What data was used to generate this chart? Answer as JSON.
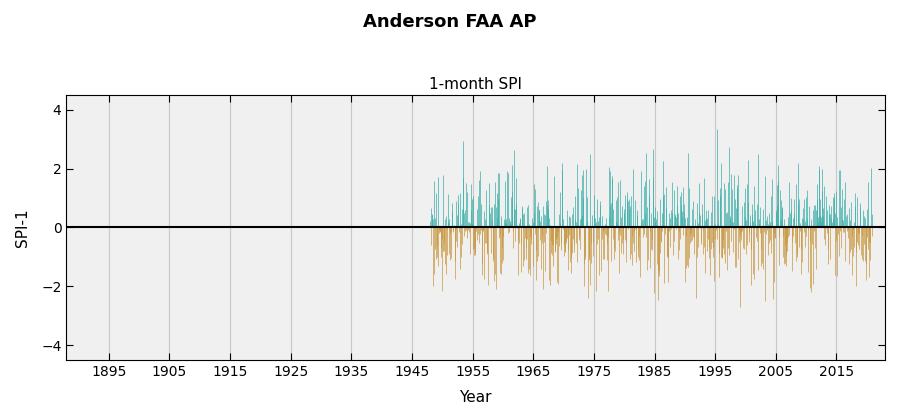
{
  "title": "Anderson FAA AP",
  "subtitle": "1-month SPI",
  "xlabel": "Year",
  "ylabel": "SPI-1",
  "ylim": [
    -4.5,
    4.5
  ],
  "yticks": [
    -4,
    -2,
    0,
    2,
    4
  ],
  "xlim": [
    1888,
    2023
  ],
  "xticks": [
    1895,
    1905,
    1915,
    1925,
    1935,
    1945,
    1955,
    1965,
    1975,
    1985,
    1995,
    2005,
    2015
  ],
  "data_start_year": 1948,
  "data_end_year": 2021,
  "positive_color": "#3aafa9",
  "negative_color": "#c8963e",
  "zero_line_color": "#000000",
  "grid_color": "#c8c8c8",
  "plot_bg_color": "#f0f0f0",
  "background_color": "#ffffff",
  "title_fontsize": 13,
  "subtitle_fontsize": 11,
  "label_fontsize": 11,
  "tick_fontsize": 10,
  "bar_linewidth": 0.5
}
